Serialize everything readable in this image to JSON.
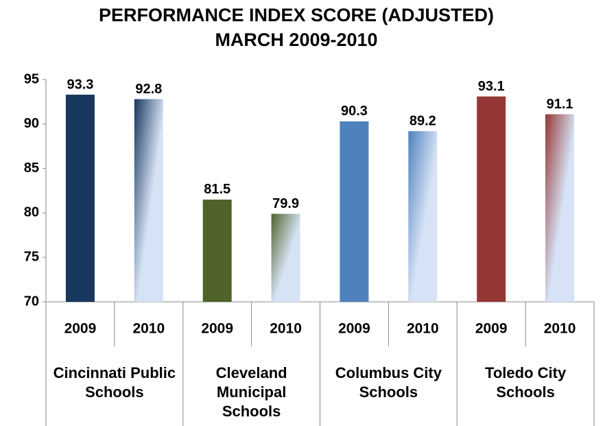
{
  "chart_data": {
    "type": "bar",
    "title": "PERFORMANCE INDEX SCORE (ADJUSTED)",
    "subtitle": "MARCH 2009-2010",
    "categories": [
      "2009",
      "2010",
      "2009",
      "2010",
      "2009",
      "2010",
      "2009",
      "2010"
    ],
    "groups": [
      "Cincinnati Public Schools",
      "Cleveland Municipal Schools",
      "Columbus City Schools",
      "Toledo City Schools"
    ],
    "values": [
      93.3,
      92.8,
      81.5,
      79.9,
      90.3,
      89.2,
      93.1,
      91.1
    ],
    "colors": [
      "#17375e",
      "#17375e",
      "#4f6228",
      "#4f6228",
      "#4f81bd",
      "#4f81bd",
      "#953735",
      "#953735"
    ],
    "gradient": [
      false,
      true,
      false,
      true,
      false,
      true,
      false,
      true
    ],
    "gradient_end": "#d6e2f5",
    "ylim": [
      70,
      95
    ],
    "yticks": [
      70,
      75,
      80,
      85,
      90,
      95
    ],
    "grid": false
  }
}
